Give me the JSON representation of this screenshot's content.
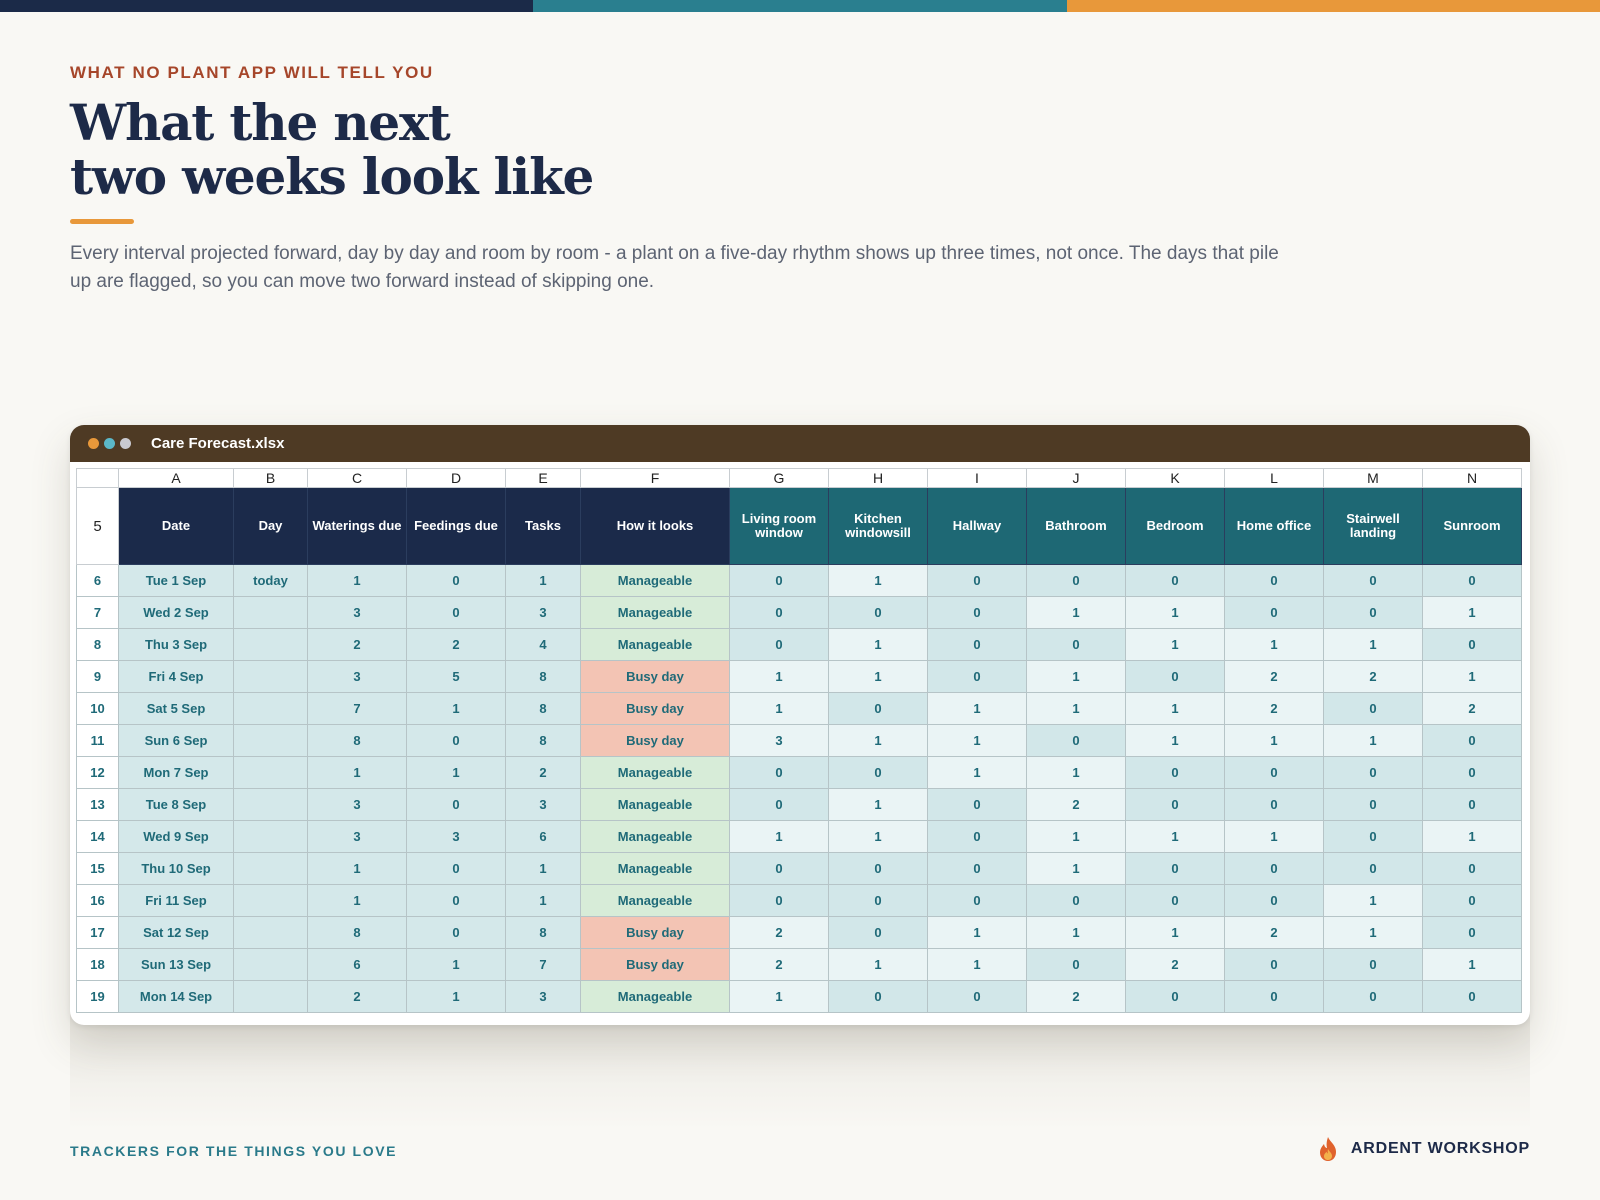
{
  "colors": {
    "navy": "#1b2a48",
    "teal": "#2a7f8f",
    "orange": "#e8983a",
    "rust": "#a6462a",
    "titlebar": "#4e3a24",
    "manageable": "#d7ecd8",
    "busy": "#f3c4b4"
  },
  "eyebrow": "WHAT NO PLANT APP WILL TELL YOU",
  "title_line1": "What the next",
  "title_line2": "two weeks look like",
  "lede": "Every interval projected forward, day by day and room by room - a plant on a five-day rhythm shows up three times, not once. The days that pile up are flagged, so you can move two forward instead of skipping one.",
  "window": {
    "file_name": "Care Forecast.xlsx",
    "dots": [
      "#e8983a",
      "#5bb8c8",
      "#c9c9d0"
    ]
  },
  "sheet": {
    "col_letters": [
      "A",
      "B",
      "C",
      "D",
      "E",
      "F",
      "G",
      "H",
      "I",
      "J",
      "K",
      "L",
      "M",
      "N"
    ],
    "header_row_num": "5",
    "headers": [
      "Date",
      "Day",
      "Waterings due",
      "Feedings due",
      "Tasks",
      "How it looks",
      "Living room window",
      "Kitchen windowsill",
      "Hallway",
      "Bathroom",
      "Bedroom",
      "Home office",
      "Stairwell landing",
      "Sunroom"
    ],
    "rows": [
      {
        "num": "6",
        "date": "Tue 1 Sep",
        "day": "today",
        "water": "1",
        "feed": "0",
        "tasks": "1",
        "status": "Manageable",
        "busy": false,
        "rooms": [
          "0",
          "1",
          "0",
          "0",
          "0",
          "0",
          "0",
          "0"
        ]
      },
      {
        "num": "7",
        "date": "Wed 2 Sep",
        "day": "",
        "water": "3",
        "feed": "0",
        "tasks": "3",
        "status": "Manageable",
        "busy": false,
        "rooms": [
          "0",
          "0",
          "0",
          "1",
          "1",
          "0",
          "0",
          "1"
        ]
      },
      {
        "num": "8",
        "date": "Thu 3 Sep",
        "day": "",
        "water": "2",
        "feed": "2",
        "tasks": "4",
        "status": "Manageable",
        "busy": false,
        "rooms": [
          "0",
          "1",
          "0",
          "0",
          "1",
          "1",
          "1",
          "0"
        ]
      },
      {
        "num": "9",
        "date": "Fri 4 Sep",
        "day": "",
        "water": "3",
        "feed": "5",
        "tasks": "8",
        "status": "Busy day",
        "busy": true,
        "rooms": [
          "1",
          "1",
          "0",
          "1",
          "0",
          "2",
          "2",
          "1"
        ]
      },
      {
        "num": "10",
        "date": "Sat 5 Sep",
        "day": "",
        "water": "7",
        "feed": "1",
        "tasks": "8",
        "status": "Busy day",
        "busy": true,
        "rooms": [
          "1",
          "0",
          "1",
          "1",
          "1",
          "2",
          "0",
          "2"
        ]
      },
      {
        "num": "11",
        "date": "Sun 6 Sep",
        "day": "",
        "water": "8",
        "feed": "0",
        "tasks": "8",
        "status": "Busy day",
        "busy": true,
        "rooms": [
          "3",
          "1",
          "1",
          "0",
          "1",
          "1",
          "1",
          "0"
        ]
      },
      {
        "num": "12",
        "date": "Mon 7 Sep",
        "day": "",
        "water": "1",
        "feed": "1",
        "tasks": "2",
        "status": "Manageable",
        "busy": false,
        "rooms": [
          "0",
          "0",
          "1",
          "1",
          "0",
          "0",
          "0",
          "0"
        ]
      },
      {
        "num": "13",
        "date": "Tue 8 Sep",
        "day": "",
        "water": "3",
        "feed": "0",
        "tasks": "3",
        "status": "Manageable",
        "busy": false,
        "rooms": [
          "0",
          "1",
          "0",
          "2",
          "0",
          "0",
          "0",
          "0"
        ]
      },
      {
        "num": "14",
        "date": "Wed 9 Sep",
        "day": "",
        "water": "3",
        "feed": "3",
        "tasks": "6",
        "status": "Manageable",
        "busy": false,
        "rooms": [
          "1",
          "1",
          "0",
          "1",
          "1",
          "1",
          "0",
          "1"
        ]
      },
      {
        "num": "15",
        "date": "Thu 10 Sep",
        "day": "",
        "water": "1",
        "feed": "0",
        "tasks": "1",
        "status": "Manageable",
        "busy": false,
        "rooms": [
          "0",
          "0",
          "0",
          "1",
          "0",
          "0",
          "0",
          "0"
        ]
      },
      {
        "num": "16",
        "date": "Fri 11 Sep",
        "day": "",
        "water": "1",
        "feed": "0",
        "tasks": "1",
        "status": "Manageable",
        "busy": false,
        "rooms": [
          "0",
          "0",
          "0",
          "0",
          "0",
          "0",
          "1",
          "0"
        ]
      },
      {
        "num": "17",
        "date": "Sat 12 Sep",
        "day": "",
        "water": "8",
        "feed": "0",
        "tasks": "8",
        "status": "Busy day",
        "busy": true,
        "rooms": [
          "2",
          "0",
          "1",
          "1",
          "1",
          "2",
          "1",
          "0"
        ]
      },
      {
        "num": "18",
        "date": "Sun 13 Sep",
        "day": "",
        "water": "6",
        "feed": "1",
        "tasks": "7",
        "status": "Busy day",
        "busy": true,
        "rooms": [
          "2",
          "1",
          "1",
          "0",
          "2",
          "0",
          "0",
          "1"
        ]
      },
      {
        "num": "19",
        "date": "Mon 14 Sep",
        "day": "",
        "water": "2",
        "feed": "1",
        "tasks": "3",
        "status": "Manageable",
        "busy": false,
        "rooms": [
          "1",
          "0",
          "0",
          "2",
          "0",
          "0",
          "0",
          "0"
        ]
      }
    ]
  },
  "footer": {
    "tagline": "TRACKERS FOR THE THINGS YOU LOVE",
    "brand": "ARDENT WORKSHOP",
    "brand_icon": "flame-icon"
  }
}
